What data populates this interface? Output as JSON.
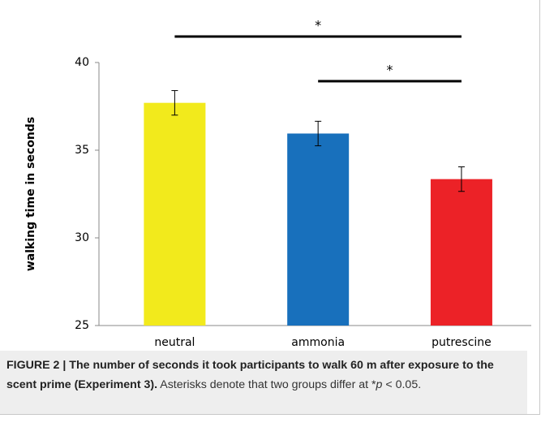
{
  "chart_data": {
    "type": "bar",
    "y_label": "walking time in seconds",
    "categories": [
      "neutral",
      "ammonia",
      "putrescine"
    ],
    "values": [
      37.7,
      35.95,
      33.35
    ],
    "errors": [
      0.7,
      0.7,
      0.7
    ],
    "colors": [
      "#f2ea1c",
      "#1870bc",
      "#ec2227"
    ],
    "ylim": [
      25,
      40
    ],
    "yticks": [
      25,
      30,
      35,
      40
    ],
    "grid": false,
    "annotations": [
      {
        "text": "*",
        "from": "neutral",
        "to": "putrescine"
      },
      {
        "text": "*",
        "from": "ammonia",
        "to": "putrescine"
      }
    ]
  },
  "caption": [
    {
      "text": "FIGURE 2 | The number of seconds it took participants to walk 60 m after exposure to the scent prime (Experiment 3).",
      "style": "bold"
    },
    {
      "text": " Asterisks denote that two groups differ at *"
    },
    {
      "text": "p",
      "style": "italic"
    },
    {
      "text": " < 0.05."
    }
  ]
}
